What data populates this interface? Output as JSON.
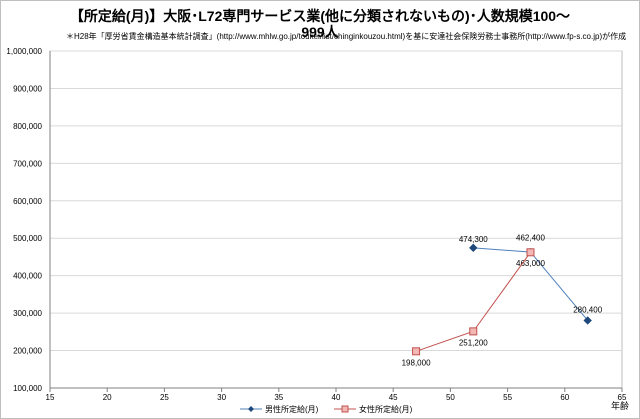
{
  "chart_data": {
    "type": "scatter",
    "title_line1": "【所定給(月)】大阪･L72専門サービス業(他に分類されないもの)･人数規模100～",
    "title_line2": "999人",
    "subtitle": "＊H28年「厚労省賃金構造基本統計調査」(http://www.mhlw.go.jp/toukei/list/chinginkouzou.html)を基に安達社会保険労務士事務所(http://www.fp-s.co.jp)が作成",
    "xlabel": "年齢",
    "ylabel": "",
    "xlim": [
      15,
      65
    ],
    "ylim": [
      100000,
      1000000
    ],
    "x_ticks": [
      15,
      20,
      25,
      30,
      35,
      40,
      45,
      50,
      55,
      60,
      65
    ],
    "y_ticks": [
      100000,
      200000,
      300000,
      400000,
      500000,
      600000,
      700000,
      800000,
      900000,
      1000000
    ],
    "y_tick_labels": [
      "100,000",
      "200,000",
      "300,000",
      "400,000",
      "500,000",
      "600,000",
      "700,000",
      "800,000",
      "900,000",
      "1,000,000"
    ],
    "grid": "horizontal",
    "legend_position": "bottom",
    "series": [
      {
        "name": "男性所定給(月)",
        "color": "#4f81bd",
        "marker": "diamond",
        "points": [
          {
            "x": 52,
            "y": 474300,
            "label": "474,300"
          },
          {
            "x": 57,
            "y": 463000,
            "label": "463,000"
          },
          {
            "x": 62,
            "y": 280400,
            "label": "280,400"
          }
        ]
      },
      {
        "name": "女性所定給(月)",
        "color": "#c0504d",
        "marker": "square",
        "points": [
          {
            "x": 47,
            "y": 198000,
            "label": "198,000"
          },
          {
            "x": 52,
            "y": 251200,
            "label": "251,200"
          },
          {
            "x": 57,
            "y": 462400,
            "label": "462,400"
          }
        ]
      }
    ]
  }
}
